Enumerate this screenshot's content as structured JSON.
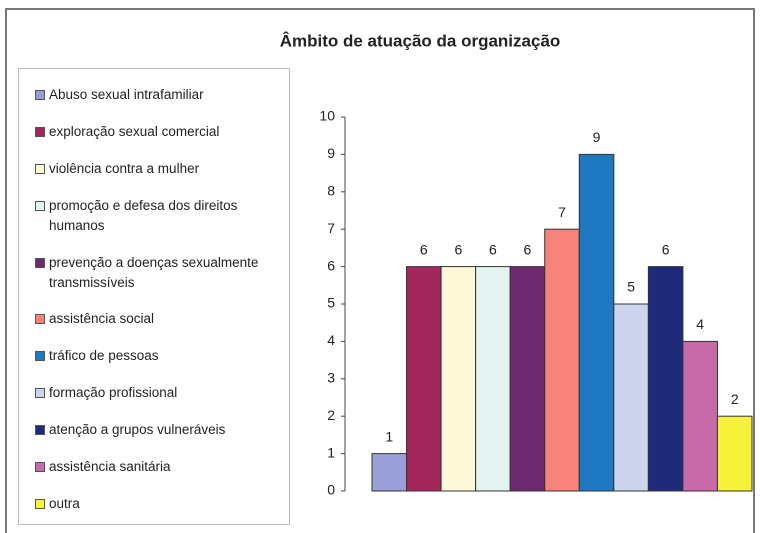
{
  "chart_data": {
    "type": "bar",
    "title": "Âmbito de atuação da organização",
    "categories": [
      "Abuso sexual intrafamiliar",
      "exploração sexual comercial",
      "violência contra a mulher",
      "promoção e defesa dos direitos humanos",
      "prevenção a doenças sexualmente transmissíveis",
      "assistência social",
      "tráfico de pessoas",
      "formação profissional",
      "atenção a grupos vulneráveis",
      "assistência sanitária",
      "outra"
    ],
    "values": [
      1,
      6,
      6,
      6,
      6,
      7,
      9,
      5,
      6,
      4,
      2
    ],
    "colors": [
      "#9a9fd8",
      "#a3275b",
      "#fdf8d8",
      "#e2f3f0",
      "#6e2a6e",
      "#f8837a",
      "#1f79c2",
      "#ccd4ee",
      "#1f2a7a",
      "#c86aaa",
      "#f6f23a"
    ],
    "ylim": [
      0,
      10
    ],
    "yticks": [
      0,
      1,
      2,
      3,
      4,
      5,
      6,
      7,
      8,
      9,
      10
    ],
    "grid": false,
    "legend": "left"
  }
}
